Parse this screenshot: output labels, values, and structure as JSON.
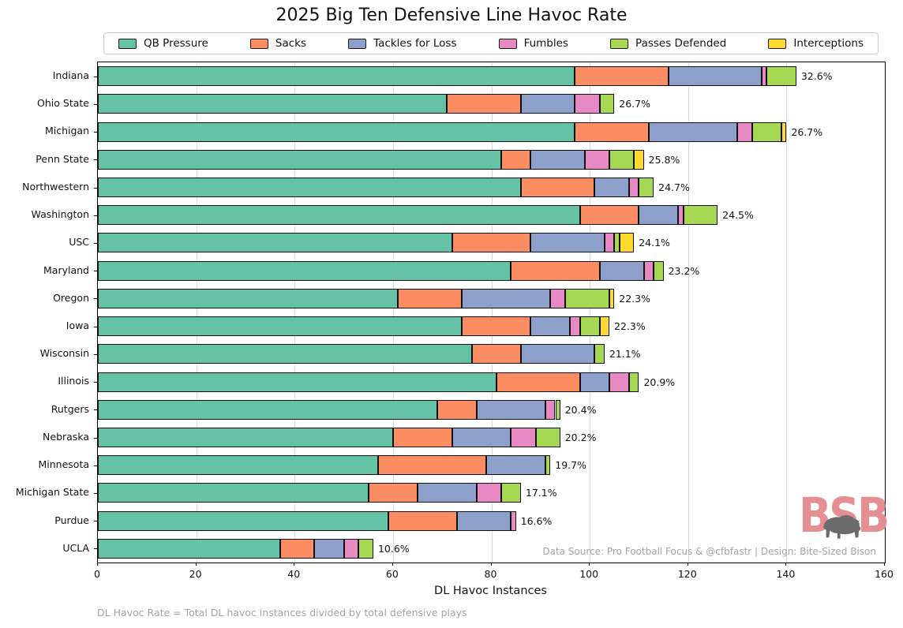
{
  "footnote": "DL Havoc Rate = Total DL havoc instances divided by total defensive plays",
  "source_credit": "Data Source: Pro Football Focus & @cfbfastr | Design: Bite-Sized Bison",
  "logo": {
    "text": "BSB",
    "color": "#e58f92",
    "bison_color": "#6b6b6b"
  },
  "chart_data": {
    "type": "bar",
    "orientation": "horizontal-stacked",
    "title": "2025 Big Ten Defensive Line Havoc Rate",
    "xlabel": "DL Havoc Instances",
    "ylabel": "",
    "xlim": [
      0,
      160
    ],
    "xticks": [
      0,
      20,
      40,
      60,
      80,
      100,
      120,
      140,
      160
    ],
    "grid": true,
    "legend_position": "top",
    "categories": [
      "Indiana",
      "Ohio State",
      "Michigan",
      "Penn State",
      "Northwestern",
      "Washington",
      "USC",
      "Maryland",
      "Oregon",
      "Iowa",
      "Wisconsin",
      "Illinois",
      "Rutgers",
      "Nebraska",
      "Minnesota",
      "Michigan State",
      "Purdue",
      "UCLA"
    ],
    "series": [
      {
        "name": "QB Pressure",
        "color": "#66c2a5",
        "values": [
          97,
          71,
          97,
          82,
          86,
          98,
          72,
          84,
          61,
          74,
          76,
          81,
          69,
          60,
          57,
          55,
          59,
          37
        ]
      },
      {
        "name": "Sacks",
        "color": "#fc8d62",
        "values": [
          19,
          15,
          15,
          6,
          15,
          12,
          16,
          18,
          13,
          14,
          10,
          17,
          8,
          12,
          22,
          10,
          14,
          7
        ]
      },
      {
        "name": "Tackles for Loss",
        "color": "#8da0cb",
        "values": [
          19,
          11,
          18,
          11,
          7,
          8,
          15,
          9,
          18,
          8,
          15,
          6,
          14,
          12,
          12,
          12,
          11,
          6
        ]
      },
      {
        "name": "Fumbles",
        "color": "#e78ac3",
        "values": [
          1,
          5,
          3,
          5,
          2,
          1,
          2,
          2,
          3,
          2,
          0,
          4,
          2,
          5,
          0,
          5,
          1,
          3
        ]
      },
      {
        "name": "Passes Defended",
        "color": "#a6d854",
        "values": [
          6,
          3,
          6,
          5,
          3,
          7,
          1,
          2,
          9,
          4,
          2,
          2,
          1,
          5,
          1,
          4,
          0,
          3
        ]
      },
      {
        "name": "Interceptions",
        "color": "#ffd92f",
        "values": [
          0,
          0,
          1,
          2,
          0,
          0,
          3,
          0,
          1,
          2,
          0,
          0,
          0,
          0,
          0,
          0,
          0,
          0
        ]
      }
    ],
    "bar_labels": [
      "32.6%",
      "26.7%",
      "26.7%",
      "25.8%",
      "24.7%",
      "24.5%",
      "24.1%",
      "23.2%",
      "22.3%",
      "22.3%",
      "21.1%",
      "20.9%",
      "20.4%",
      "20.2%",
      "19.7%",
      "17.1%",
      "16.6%",
      "10.6%"
    ]
  }
}
